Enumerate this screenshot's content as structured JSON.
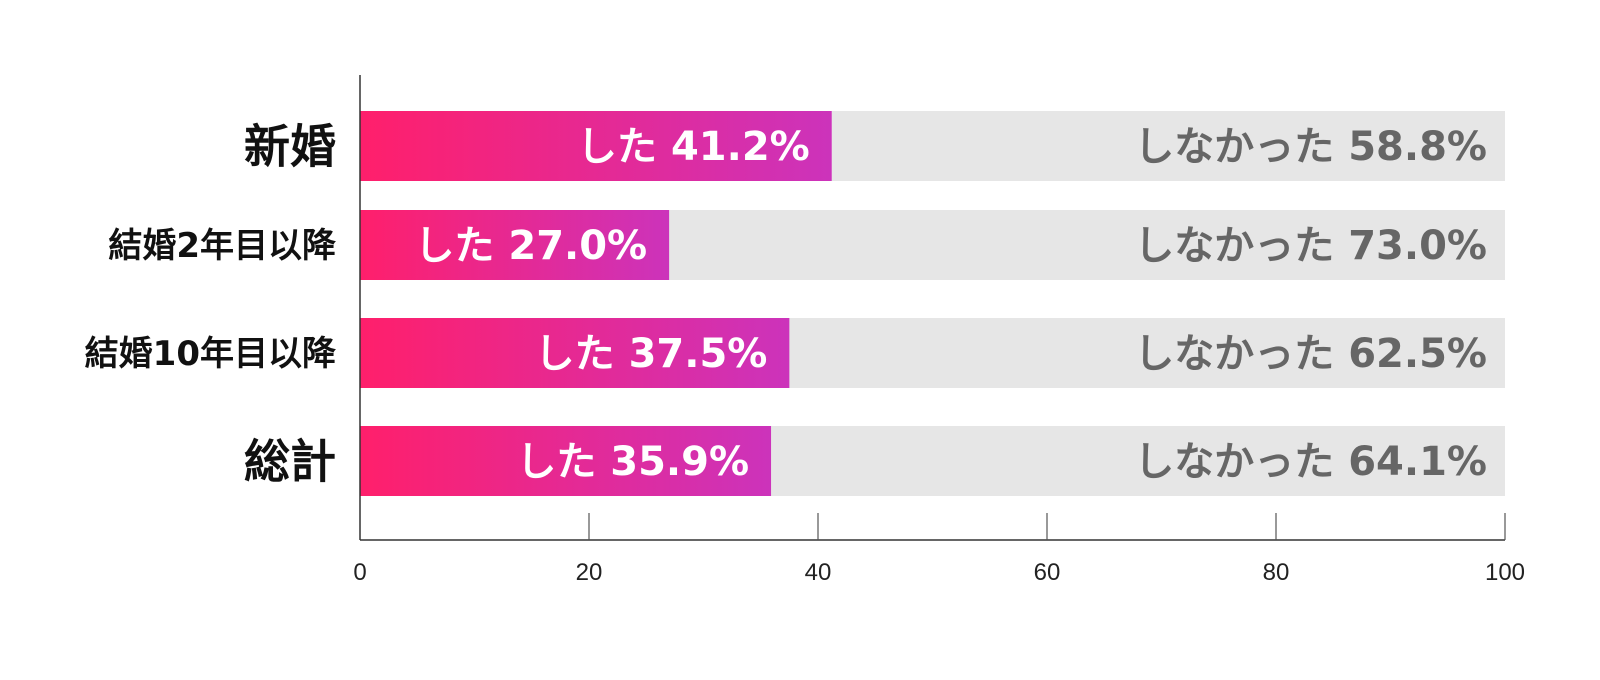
{
  "chart_data": {
    "type": "bar",
    "orientation": "horizontal",
    "stacked": true,
    "categories": [
      "新婚",
      "結婚2年目以降",
      "結婚10年目以降",
      "総計"
    ],
    "series": [
      {
        "values": [
          41.2,
          27.0,
          37.5,
          35.9
        ],
        "labels": [
          "した 41.2%",
          "した 27.0%",
          "した 37.5%",
          "した 35.9%"
        ],
        "color_start": "#ff1f6b",
        "color_end": "#cc33bb",
        "label_color": "#ffffff"
      },
      {
        "values": [
          58.8,
          73.0,
          62.5,
          64.1
        ],
        "labels": [
          "しなかった 58.8%",
          "しなかった 73.0%",
          "しなかった 62.5%",
          "しなかった 64.1%"
        ],
        "color": "#e6e6e6",
        "label_color": "#666666"
      }
    ],
    "xlim": [
      0,
      100
    ],
    "xticks": [
      0,
      20,
      40,
      60,
      80,
      100
    ],
    "xtick_labels": [
      "0",
      "20",
      "40",
      "60",
      "80",
      "100"
    ],
    "title": "",
    "xlabel": "",
    "ylabel": "",
    "grid": false,
    "legend": "none"
  }
}
